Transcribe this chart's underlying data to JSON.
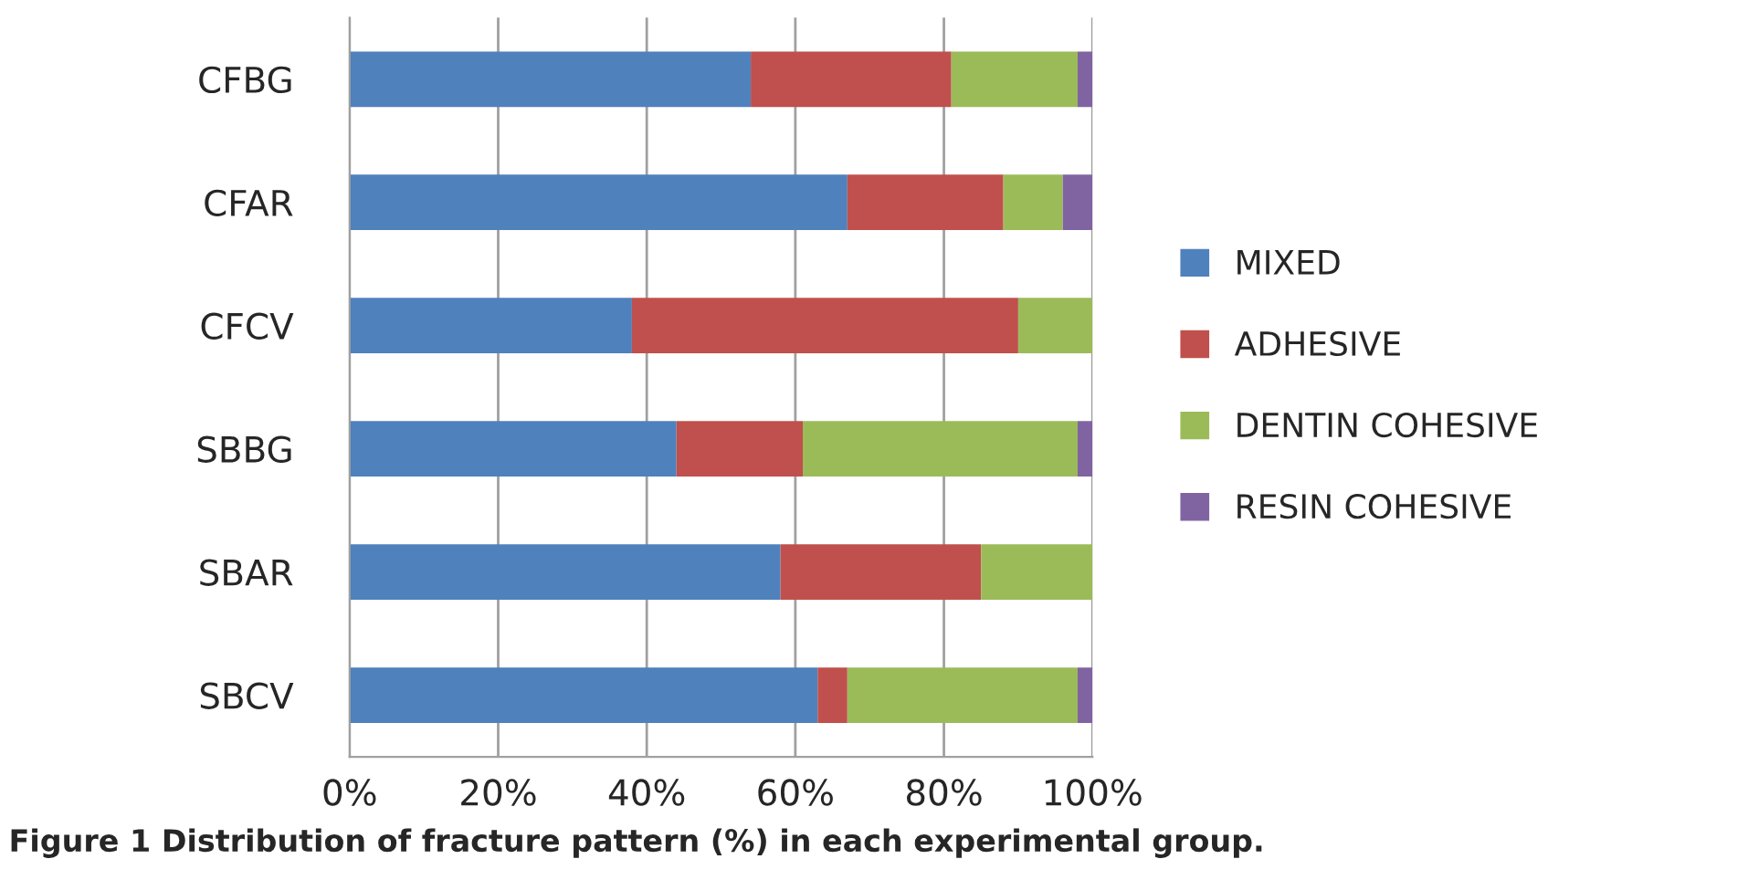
{
  "chart_data": {
    "type": "bar",
    "orientation": "horizontal",
    "stacked": true,
    "categories": [
      "CFBG",
      "CFAR",
      "CFCV",
      "SBBG",
      "SBAR",
      "SBCV"
    ],
    "series": [
      {
        "name": "MIXED",
        "color": "#4f81bd",
        "values": [
          54,
          67,
          38,
          44,
          58,
          63
        ]
      },
      {
        "name": "ADHESIVE",
        "color": "#c0504d",
        "values": [
          27,
          21,
          52,
          17,
          27,
          4
        ]
      },
      {
        "name": "DENTIN COHESIVE",
        "color": "#9bbb59",
        "values": [
          17,
          8,
          10,
          37,
          15,
          31
        ]
      },
      {
        "name": "RESIN COHESIVE",
        "color": "#8064a2",
        "values": [
          2,
          4,
          0,
          2,
          0,
          2
        ]
      }
    ],
    "xlim": [
      0,
      100
    ],
    "xticks": [
      {
        "value": 0,
        "label": "0%"
      },
      {
        "value": 20,
        "label": "20%"
      },
      {
        "value": 40,
        "label": "40%"
      },
      {
        "value": 60,
        "label": "60%"
      },
      {
        "value": 80,
        "label": "80%"
      },
      {
        "value": 100,
        "label": "100%"
      }
    ],
    "grid": "x",
    "legend": "right",
    "annotations": [
      "Figure 1 Distribution of fracture pattern (%) in each experimental group."
    ]
  }
}
